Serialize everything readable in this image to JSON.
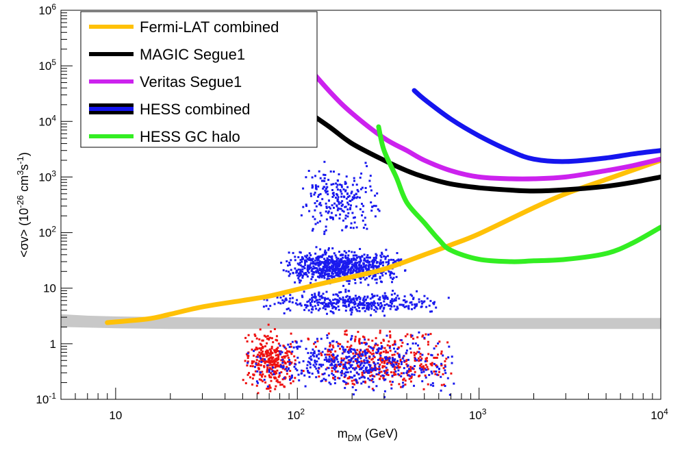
{
  "chart_data": {
    "type": "scatter",
    "x_scale": "log",
    "y_scale": "log",
    "xlim": [
      5,
      10000
    ],
    "ylim": [
      0.1,
      1000000
    ],
    "xlabel": {
      "main": "m",
      "sub": "DM",
      "tail": " (GeV)"
    },
    "ylabel": {
      "p1": "<σv> (10",
      "s1": "-26",
      "p2": " cm",
      "s2": "3",
      "p3": "s",
      "s3": "-1",
      "p4": ")"
    },
    "x_ticks": [
      {
        "value": 10,
        "base": "10",
        "exp": ""
      },
      {
        "value": 100,
        "base": "10",
        "exp": "2"
      },
      {
        "value": 1000,
        "base": "10",
        "exp": "3"
      },
      {
        "value": 10000,
        "base": "10",
        "exp": "4"
      }
    ],
    "y_ticks": [
      {
        "value": 0.1,
        "base": "10",
        "exp": "-1"
      },
      {
        "value": 1,
        "base": "1",
        "exp": ""
      },
      {
        "value": 10,
        "base": "10",
        "exp": ""
      },
      {
        "value": 100,
        "base": "10",
        "exp": "2"
      },
      {
        "value": 1000,
        "base": "10",
        "exp": "3"
      },
      {
        "value": 10000,
        "base": "10",
        "exp": "4"
      },
      {
        "value": 100000,
        "base": "10",
        "exp": "5"
      },
      {
        "value": 1000000,
        "base": "10",
        "exp": "6"
      }
    ],
    "legend_position": "top-left",
    "series": [
      {
        "name": "Fermi-LAT combined",
        "color": "#ffc107",
        "legend_edge": "#ffc107",
        "x": [
          9,
          15,
          20,
          30,
          50,
          70,
          100,
          150,
          200,
          300,
          500,
          700,
          1000,
          2000,
          3000,
          5000,
          10000
        ],
        "y": [
          2.4,
          2.8,
          3.4,
          4.6,
          6.0,
          7.2,
          9.5,
          13,
          16,
          22,
          40,
          60,
          95,
          280,
          500,
          900,
          2000
        ]
      },
      {
        "name": "MAGIC Segue1",
        "color": "#000000",
        "legend_edge": "#000000",
        "x": [
          100,
          150,
          200,
          300,
          400,
          500,
          700,
          1000,
          1500,
          2000,
          3000,
          5000,
          7000,
          10000
        ],
        "y": [
          20000,
          8000,
          4000,
          2000,
          1300,
          1000,
          750,
          640,
          580,
          560,
          590,
          680,
          800,
          1000
        ]
      },
      {
        "name": "Veritas Segue1",
        "color": "#cc22ee",
        "legend_edge": "#cc22ee",
        "x": [
          100,
          150,
          200,
          300,
          400,
          500,
          700,
          1000,
          1500,
          2000,
          3000,
          5000,
          7000,
          10000
        ],
        "y": [
          160000,
          35000,
          14000,
          5000,
          3000,
          2000,
          1300,
          1000,
          930,
          930,
          1000,
          1300,
          1600,
          2100
        ]
      },
      {
        "name": "HESS combined",
        "color": "#1515ee",
        "legend_edge": "#000000",
        "x": [
          440,
          500,
          700,
          1000,
          1500,
          2000,
          3000,
          5000,
          7000,
          10000
        ],
        "y": [
          36000,
          25000,
          11000,
          5500,
          2900,
          2100,
          1900,
          2200,
          2600,
          3000
        ]
      },
      {
        "name": "HESS GC halo",
        "color": "#33ee22",
        "legend_edge": "#33ee22",
        "x": [
          280,
          300,
          350,
          400,
          500,
          600,
          700,
          1000,
          1500,
          2000,
          3000,
          5000,
          7000,
          10000
        ],
        "y": [
          8000,
          3000,
          1000,
          350,
          150,
          75,
          48,
          33,
          30,
          31,
          33,
          42,
          65,
          125
        ]
      }
    ],
    "band": {
      "color": "#c8c8c8",
      "x": [
        5,
        7,
        10,
        20,
        50,
        100,
        1000,
        10000
      ],
      "y_low": [
        2.0,
        1.95,
        1.9,
        1.85,
        1.85,
        1.85,
        1.85,
        1.85
      ],
      "y_high": [
        3.4,
        3.2,
        3.1,
        3.0,
        2.95,
        2.9,
        2.9,
        2.9
      ]
    },
    "scatter_groups": [
      {
        "name": "",
        "color": "#1a1aee",
        "points": 1900,
        "regions": [
          {
            "x": [
              80,
              400
            ],
            "y": [
              10,
              60
            ],
            "weight": 0.42
          },
          {
            "x": [
              60,
              700
            ],
            "y": [
              3,
              10
            ],
            "weight": 0.2
          },
          {
            "x": [
              100,
              300
            ],
            "y": [
              60,
              2500
            ],
            "weight": 0.12
          },
          {
            "x": [
              50,
              800
            ],
            "y": [
              0.1,
              2
            ],
            "weight": 0.26
          }
        ]
      },
      {
        "name": "",
        "color": "#ee1111",
        "points": 700,
        "regions": [
          {
            "x": [
              50,
              100
            ],
            "y": [
              0.1,
              2.5
            ],
            "weight": 0.45
          },
          {
            "x": [
              100,
              800
            ],
            "y": [
              0.1,
              2.5
            ],
            "weight": 0.55
          }
        ]
      }
    ]
  }
}
